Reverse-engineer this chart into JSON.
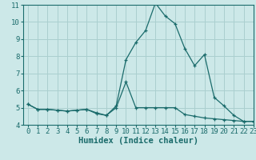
{
  "xlabel": "Humidex (Indice chaleur)",
  "x_values": [
    0,
    1,
    2,
    3,
    4,
    5,
    6,
    7,
    8,
    9,
    10,
    11,
    12,
    13,
    14,
    15,
    16,
    17,
    18,
    19,
    20,
    21,
    22,
    23
  ],
  "line1_y": [
    5.2,
    4.9,
    4.9,
    4.85,
    4.8,
    4.85,
    4.9,
    4.65,
    4.55,
    5.1,
    7.8,
    8.8,
    9.5,
    11.1,
    10.35,
    9.9,
    8.45,
    7.45,
    8.1,
    5.6,
    5.1,
    4.55,
    4.2,
    4.2
  ],
  "line2_y": [
    5.2,
    4.9,
    4.9,
    4.85,
    4.8,
    4.85,
    4.9,
    4.7,
    4.55,
    5.0,
    6.5,
    5.0,
    5.0,
    5.0,
    5.0,
    5.0,
    4.6,
    4.5,
    4.4,
    4.35,
    4.3,
    4.25,
    4.2,
    4.2
  ],
  "line_color": "#1a6b6b",
  "bg_color": "#cce8e8",
  "grid_color": "#aacfcf",
  "ylim": [
    4,
    11
  ],
  "yticks": [
    4,
    5,
    6,
    7,
    8,
    9,
    10,
    11
  ],
  "xlim": [
    -0.5,
    23
  ],
  "xticks": [
    0,
    1,
    2,
    3,
    4,
    5,
    6,
    7,
    8,
    9,
    10,
    11,
    12,
    13,
    14,
    15,
    16,
    17,
    18,
    19,
    20,
    21,
    22,
    23
  ],
  "xlabel_fontsize": 7.5,
  "tick_fontsize": 6.5
}
